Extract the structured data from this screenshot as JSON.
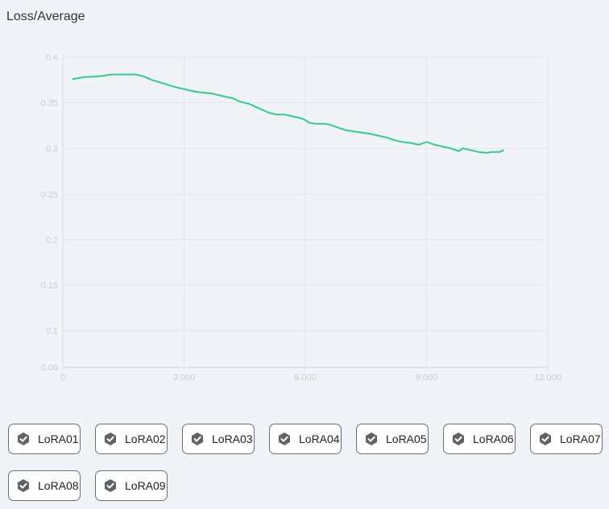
{
  "chart_data": {
    "type": "line",
    "title": "Loss/Average",
    "xlim": [
      0,
      12000
    ],
    "ylim": [
      0.06,
      0.4
    ],
    "x_ticks": [
      0,
      3000,
      6000,
      9000,
      12000
    ],
    "x_tick_labels": [
      "0",
      "3,000",
      "6,000",
      "9,000",
      "12,000"
    ],
    "y_ticks": [
      0.4,
      0.35,
      0.3,
      0.25,
      0.2,
      0.15,
      0.1,
      0.06
    ],
    "y_tick_labels": [
      "0.4",
      "0.35",
      "0.3",
      "0.25",
      "0.2",
      "0.15",
      "0.1",
      "0.06"
    ],
    "grid": true,
    "line_color": "#2ecc8f",
    "series": [
      {
        "x": [
          250,
          500,
          900,
          1200,
          1500,
          1800,
          2000,
          2200,
          2500,
          2800,
          3000,
          3300,
          3500,
          3700,
          3900,
          4200,
          4400,
          4600,
          4800,
          5000,
          5100,
          5300,
          5500,
          5700,
          5900,
          6000,
          6100,
          6300,
          6500,
          6600,
          6800,
          7000,
          7300,
          7600,
          7800,
          8000,
          8200,
          8400,
          8600,
          8800,
          9000,
          9200,
          9400,
          9600,
          9800,
          9900,
          10100,
          10300,
          10500,
          10600,
          10800,
          10900
        ],
        "y": [
          0.376,
          0.378,
          0.379,
          0.381,
          0.381,
          0.381,
          0.379,
          0.375,
          0.371,
          0.367,
          0.365,
          0.362,
          0.361,
          0.36,
          0.358,
          0.355,
          0.351,
          0.349,
          0.345,
          0.341,
          0.339,
          0.337,
          0.337,
          0.335,
          0.333,
          0.331,
          0.328,
          0.327,
          0.327,
          0.326,
          0.323,
          0.32,
          0.318,
          0.316,
          0.314,
          0.312,
          0.309,
          0.307,
          0.306,
          0.304,
          0.307,
          0.304,
          0.302,
          0.3,
          0.297,
          0.3,
          0.298,
          0.296,
          0.295,
          0.296,
          0.296,
          0.298
        ]
      }
    ]
  },
  "tags": [
    {
      "label": "LoRA01"
    },
    {
      "label": "LoRA02"
    },
    {
      "label": "LoRA03"
    },
    {
      "label": "LoRA04"
    },
    {
      "label": "LoRA05"
    },
    {
      "label": "LoRA06"
    },
    {
      "label": "LoRA07"
    },
    {
      "label": "LoRA08"
    },
    {
      "label": "LoRA09"
    }
  ],
  "tag_icon": "check-shield-icon"
}
